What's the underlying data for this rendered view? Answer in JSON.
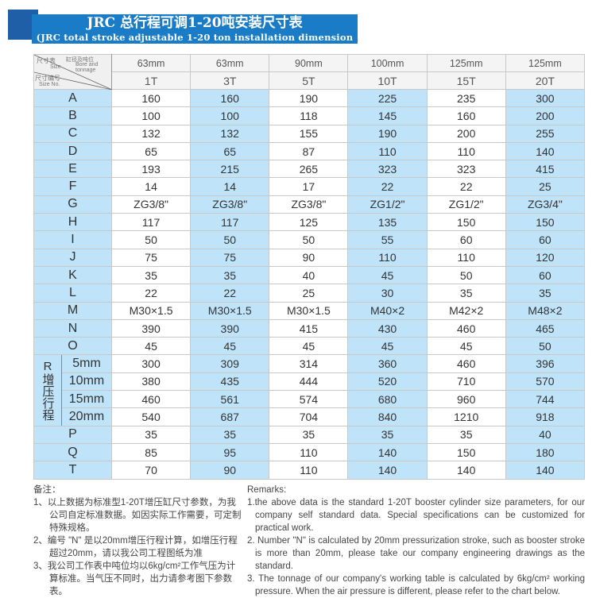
{
  "title": {
    "cn": "JRC 总行程可调1-20吨安装尺寸表",
    "en": "(JRC total stroke adjustable 1-20 ton installation dimension table)"
  },
  "corner": {
    "size_cn": "尺寸表",
    "size_en": "Size",
    "bore_cn": "缸径及吨位",
    "bore_en": "Bore and tonnage",
    "no_cn": "尺寸编号",
    "no_en": "Size No."
  },
  "bores": [
    "63mm",
    "63mm",
    "90mm",
    "100mm",
    "125mm",
    "125mm"
  ],
  "tonnages": [
    "1T",
    "3T",
    "5T",
    "10T",
    "15T",
    "20T"
  ],
  "rows": [
    {
      "label": "A",
      "values": [
        "160",
        "160",
        "190",
        "225",
        "235",
        "300"
      ]
    },
    {
      "label": "B",
      "values": [
        "100",
        "100",
        "118",
        "145",
        "160",
        "200"
      ]
    },
    {
      "label": "C",
      "values": [
        "132",
        "132",
        "155",
        "190",
        "200",
        "255"
      ]
    },
    {
      "label": "D",
      "values": [
        "65",
        "65",
        "87",
        "110",
        "110",
        "140"
      ]
    },
    {
      "label": "E",
      "values": [
        "193",
        "215",
        "265",
        "323",
        "323",
        "415"
      ]
    },
    {
      "label": "F",
      "values": [
        "14",
        "14",
        "17",
        "22",
        "22",
        "25"
      ]
    },
    {
      "label": "G",
      "values": [
        "ZG3/8\"",
        "ZG3/8\"",
        "ZG3/8\"",
        "ZG1/2\"",
        "ZG1/2\"",
        "ZG3/4\""
      ]
    },
    {
      "label": "H",
      "values": [
        "117",
        "117",
        "125",
        "135",
        "150",
        "150"
      ]
    },
    {
      "label": "I",
      "values": [
        "50",
        "50",
        "50",
        "55",
        "60",
        "60"
      ]
    },
    {
      "label": "J",
      "values": [
        "75",
        "75",
        "90",
        "110",
        "110",
        "120"
      ]
    },
    {
      "label": "K",
      "values": [
        "35",
        "35",
        "40",
        "45",
        "50",
        "60"
      ]
    },
    {
      "label": "L",
      "values": [
        "22",
        "22",
        "25",
        "30",
        "35",
        "35"
      ]
    },
    {
      "label": "M",
      "values": [
        "M30×1.5",
        "M30×1.5",
        "M30×1.5",
        "M40×2",
        "M42×2",
        "M48×2"
      ]
    },
    {
      "label": "N",
      "values": [
        "390",
        "390",
        "415",
        "430",
        "460",
        "465"
      ]
    },
    {
      "label": "O",
      "values": [
        "45",
        "45",
        "45",
        "45",
        "45",
        "50"
      ]
    }
  ],
  "r_group": {
    "label": "R增压行程",
    "rows": [
      {
        "label": "5mm",
        "values": [
          "300",
          "309",
          "314",
          "360",
          "460",
          "396"
        ]
      },
      {
        "label": "10mm",
        "values": [
          "380",
          "435",
          "444",
          "520",
          "710",
          "570"
        ]
      },
      {
        "label": "15mm",
        "values": [
          "460",
          "561",
          "574",
          "680",
          "960",
          "744"
        ]
      },
      {
        "label": "20mm",
        "values": [
          "540",
          "687",
          "704",
          "840",
          "1210",
          "918"
        ]
      }
    ]
  },
  "rows_after": [
    {
      "label": "P",
      "values": [
        "35",
        "35",
        "35",
        "35",
        "35",
        "40"
      ]
    },
    {
      "label": "Q",
      "values": [
        "85",
        "95",
        "110",
        "140",
        "150",
        "180"
      ]
    },
    {
      "label": "T",
      "values": [
        "70",
        "90",
        "110",
        "140",
        "140",
        "140"
      ]
    }
  ],
  "notes_cn": {
    "heading": "备注：",
    "items": [
      "1、以上数据为标准型1-20T增压缸尺寸参数，为我公司自定标准数据。如因实际工作需要，可定制特殊规格。",
      "2、编号 \"N\" 是以20mm增压行程计算，如增压行程超过20mm，请以我公司工程图纸为准",
      "3、我公司工作表中吨位均以6kg/cm²工作气压为计算标准。当气压不同时，出力请参考图下参数表。"
    ]
  },
  "notes_en": {
    "heading": "Remarks:",
    "items": [
      "1.the above data is the standard 1-20T booster cylinder size parameters, for our company self standard data. Special specifications can be customized for practical work.",
      "2. Number \"N\" is calculated by 20mm pressurization stroke, such as booster stroke is more than 20mm, please take our company engineering drawings as the standard.",
      "3. The tonnage of our company's working table is calculated by 6kg/cm² working pressure. When the air pressure is different, please refer to the chart below."
    ]
  }
}
